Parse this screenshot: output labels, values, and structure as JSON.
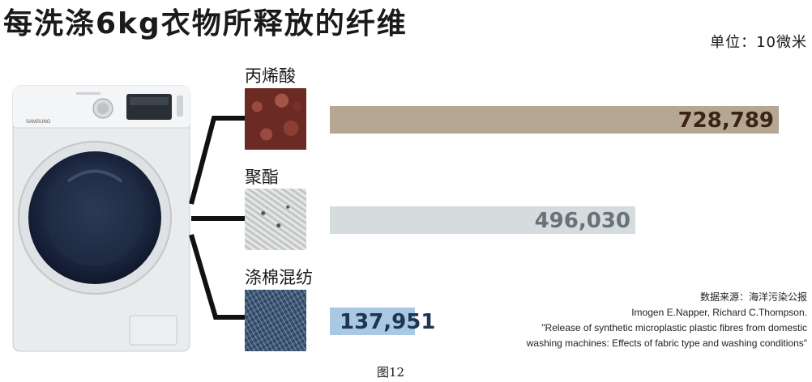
{
  "title": "每洗涤6kg衣物所释放的纤维",
  "unit": "单位：10微米",
  "figure_caption": "图12",
  "source": {
    "line1": "数据来源：海洋污染公报",
    "line2": "Imogen E.Napper, Richard C.Thompson.",
    "line3": "\"Release of synthetic microplastic plastic fibres from domestic",
    "line4": "washing machines: Effects of fabric type and washing conditions\""
  },
  "chart_data": {
    "type": "bar",
    "orientation": "horizontal",
    "title": "每洗涤6kg衣物所释放的纤维",
    "unit": "单位：10微米",
    "categories": [
      "丙烯酸",
      "聚酯",
      "涤棉混纺"
    ],
    "values": [
      728789,
      496030,
      137951
    ],
    "value_labels": [
      "728,789",
      "496,030",
      "137,951"
    ],
    "bar_colors": [
      "#b6a793",
      "#d4dcdd",
      "#a9c8e3"
    ],
    "label_colors": [
      "#3a2414",
      "#6a7279",
      "#1f3552"
    ],
    "swatch_colors": [
      "#6b2a24",
      "#cdd0cf",
      "#3f5a78"
    ],
    "xlim": [
      0,
      728789
    ],
    "grid": false,
    "legend": "none"
  }
}
